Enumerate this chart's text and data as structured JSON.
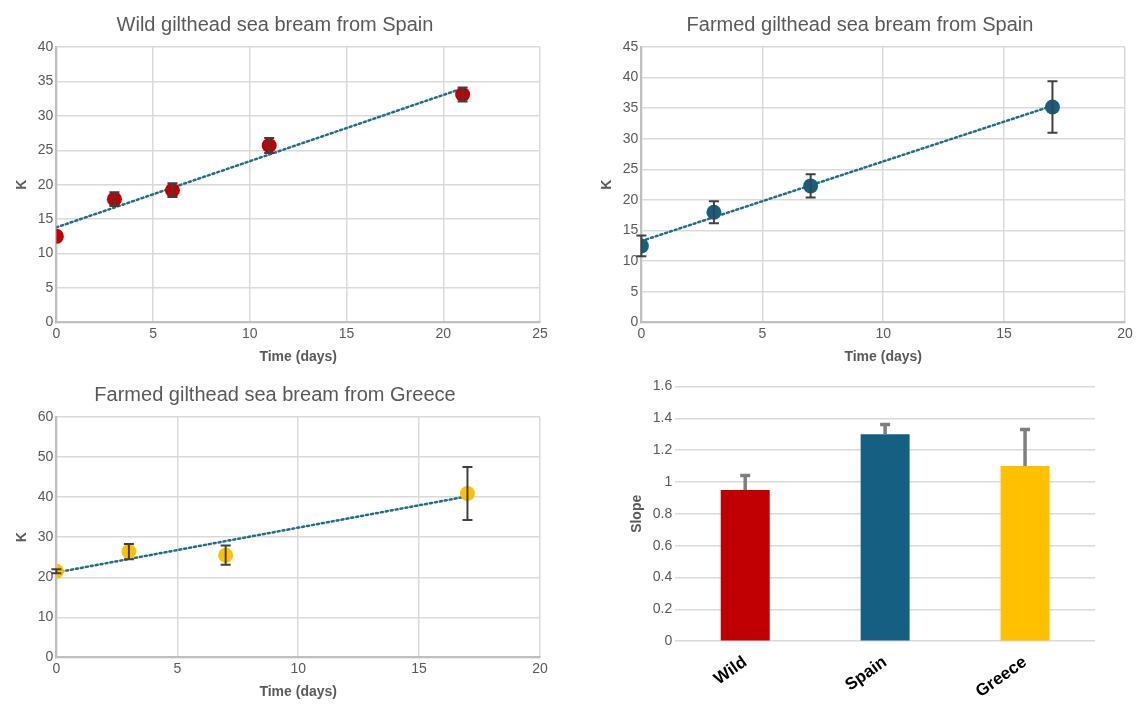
{
  "chart_data": [
    {
      "type": "scatter",
      "title": "Wild gilthead sea bream from Spain",
      "xlabel": "Time (days)",
      "ylabel": "K",
      "xlim": [
        0,
        25
      ],
      "xticks": [
        0,
        5,
        10,
        15,
        20,
        25
      ],
      "ylim": [
        0,
        40
      ],
      "yticks": [
        0,
        5,
        10,
        15,
        20,
        25,
        30,
        35,
        40
      ],
      "grid": true,
      "series": [
        {
          "type": "scatter",
          "marker": "circle",
          "color": "#c00000",
          "x": [
            0,
            3,
            6,
            11,
            21
          ],
          "values": [
            12.5,
            17.9,
            19.2,
            25.7,
            33.1
          ],
          "errors": [
            null,
            1.0,
            1.0,
            1.1,
            1.0
          ]
        },
        {
          "type": "line",
          "marker": "none",
          "line_style": "dotted",
          "color": "#1f6e8c",
          "x": [
            0,
            21
          ],
          "values": [
            13.8,
            34.0
          ]
        }
      ]
    },
    {
      "type": "scatter",
      "title": "Farmed gilthead sea bream from Spain",
      "xlabel": "Time (days)",
      "ylabel": "K",
      "xlim": [
        0,
        20
      ],
      "xticks": [
        0,
        5,
        10,
        15,
        20
      ],
      "ylim": [
        0,
        45
      ],
      "yticks": [
        0,
        5,
        10,
        15,
        20,
        25,
        30,
        35,
        40,
        45
      ],
      "grid": true,
      "series": [
        {
          "type": "scatter",
          "marker": "circle",
          "color": "#156082",
          "x": [
            0,
            3,
            7,
            17
          ],
          "values": [
            12.5,
            18,
            22.3,
            35.2
          ],
          "errors": [
            1.7,
            1.8,
            1.9,
            4.2
          ]
        },
        {
          "type": "line",
          "marker": "none",
          "line_style": "dotted",
          "color": "#1f6e8c",
          "x": [
            0,
            17
          ],
          "values": [
            13.3,
            35.4
          ]
        }
      ]
    },
    {
      "type": "scatter",
      "title": "Farmed gilthead sea bream from Greece",
      "xlabel": "Time (days)",
      "ylabel": "K",
      "xlim": [
        0,
        20
      ],
      "xticks": [
        0,
        5,
        10,
        15,
        20
      ],
      "ylim": [
        0,
        60
      ],
      "yticks": [
        0,
        10,
        20,
        30,
        40,
        50,
        60
      ],
      "grid": true,
      "series": [
        {
          "type": "scatter",
          "marker": "circle",
          "color": "#ffc000",
          "x": [
            0,
            3,
            7,
            17
          ],
          "values": [
            21.5,
            26.4,
            25.5,
            40.9
          ],
          "errors": [
            0.5,
            1.9,
            2.4,
            6.6
          ]
        },
        {
          "type": "line",
          "marker": "none",
          "line_style": "dotted",
          "color": "#1f6e8c",
          "x": [
            0,
            17
          ],
          "values": [
            21.2,
            40.2
          ]
        }
      ]
    },
    {
      "type": "bar",
      "ylabel": "Slope",
      "categories": [
        "Wild",
        "Spain",
        "Greece"
      ],
      "values": [
        0.95,
        1.3,
        1.1
      ],
      "colors": [
        "#c00000",
        "#156082",
        "#ffc000"
      ],
      "errors": [
        [
          0.95,
          1.04
        ],
        [
          1.3,
          1.36
        ],
        [
          1.1,
          1.33
        ]
      ],
      "ylim": [
        0,
        1.6
      ],
      "yticks": [
        0,
        0.2,
        0.4,
        0.6,
        0.8,
        1,
        1.2,
        1.4,
        1.6
      ],
      "grid": "y"
    }
  ]
}
